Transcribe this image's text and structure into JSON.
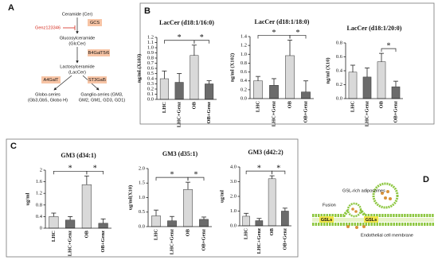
{
  "panel_labels": [
    "A",
    "B",
    "C",
    "D"
  ],
  "diagram_a": {
    "ceramide": "Ceramide (Cer)",
    "gcs": "GCS",
    "inhibitor": "Genz123346",
    "glccer_1": "Glucosylceramide",
    "glccer_2": "(GlcCer)",
    "b4galt": "B4GalT5/6",
    "laccer_1": "Lactosylceramide",
    "laccer_2": "(LacCer)",
    "a4galt": "A4GalT",
    "st3gal5": "ST3Gal5",
    "globo_1": "Globo-series",
    "globo_2": "(Gb3,Gb5, Globo H)",
    "ganglio_1": "Ganglio-series (GM3,",
    "ganglio_2": "GM2, GM1, GD3, GD1)"
  },
  "diagram_d": {
    "adiposomes": "GSL-rich adiposomes",
    "fusion": "Fusion",
    "gsls_1": "GSLs",
    "gsls_2": "GSLs",
    "membrane": "Endothelial cell membrane"
  },
  "chart_data": [
    {
      "type": "bar",
      "title": "LacCer (d18:1/16:0)",
      "y_label": "ng/ml (X103)",
      "categories": [
        "LHC",
        "LHC+Genz",
        "OB",
        "OB+Genz"
      ],
      "values": [
        0.4,
        0.33,
        0.85,
        0.3
      ],
      "errors": [
        0.15,
        0.17,
        0.2,
        0.06
      ],
      "colors": [
        "#d9d9d9",
        "#6b6b6b",
        "#d9d9d9",
        "#6b6b6b"
      ],
      "ylim": [
        0,
        1.2
      ],
      "yticks": [
        {
          "value": 0,
          "label": "0.0"
        },
        0.1,
        0.2,
        0.3,
        0.4,
        0.5,
        0.6,
        0.7,
        0.8,
        0.9,
        {
          "value": 1,
          "label": "1.0"
        },
        1.1,
        1.2
      ],
      "significance": [
        {
          "label": "*",
          "between": [
            "LHC",
            "OB"
          ]
        },
        {
          "label": "*",
          "between": [
            "OB",
            "OB+Genz"
          ]
        }
      ]
    },
    {
      "type": "bar",
      "title": "LacCer (d18:1/18:0)",
      "y_label": "ng/ml (X102)",
      "categories": [
        "LHC",
        "LHC+Genz",
        "OB",
        "OB+Genz"
      ],
      "values": [
        0.4,
        0.3,
        0.97,
        0.15
      ],
      "errors": [
        0.1,
        0.15,
        0.35,
        0.25
      ],
      "colors": [
        "#d9d9d9",
        "#6b6b6b",
        "#d9d9d9",
        "#6b6b6b"
      ],
      "ylim": [
        0,
        1.4
      ],
      "yticks": [
        {
          "value": 0,
          "label": "0.0"
        },
        0.2,
        0.4,
        0.6,
        0.8,
        {
          "value": 1,
          "label": "1.0"
        },
        1.2,
        1.4
      ],
      "significance": [
        {
          "label": "*",
          "between": [
            "LHC",
            "OB"
          ]
        },
        {
          "label": "*",
          "between": [
            "OB",
            "OB+Genz"
          ]
        }
      ]
    },
    {
      "type": "bar",
      "title": "LacCer (d18:1/20:0)",
      "y_label": "ng/ml (X10)",
      "categories": [
        "LHC",
        "LHC+Genz",
        "OB",
        "OB+Genz"
      ],
      "values": [
        0.38,
        0.31,
        0.53,
        0.17
      ],
      "errors": [
        0.1,
        0.13,
        0.12,
        0.08
      ],
      "colors": [
        "#d9d9d9",
        "#6b6b6b",
        "#d9d9d9",
        "#6b6b6b"
      ],
      "ylim": [
        0,
        0.8
      ],
      "yticks": [
        {
          "value": 0,
          "label": "0.0"
        },
        0.2,
        0.4,
        0.6,
        0.8
      ],
      "significance": [
        {
          "label": "*",
          "between": [
            "OB",
            "OB+Genz"
          ]
        }
      ]
    },
    {
      "type": "bar",
      "title": "GM3 (d34:1)",
      "y_label": "ug/ml",
      "categories": [
        "LHC",
        "LHC+Genz",
        "OB",
        "OB+Genz"
      ],
      "values": [
        0.4,
        0.28,
        1.5,
        0.17
      ],
      "errors": [
        0.12,
        0.12,
        0.3,
        0.15
      ],
      "colors": [
        "#d9d9d9",
        "#6b6b6b",
        "#d9d9d9",
        "#6b6b6b"
      ],
      "ylim": [
        0,
        2
      ],
      "yticks": [
        0,
        0.4,
        0.8,
        1.2,
        1.6,
        2
      ],
      "significance": [
        {
          "label": "*",
          "between": [
            "LHC",
            "OB"
          ]
        },
        {
          "label": "*",
          "between": [
            "OB",
            "OB+Genz"
          ]
        }
      ]
    },
    {
      "type": "bar",
      "title": "GM3 (d35:1)",
      "y_label": "ug/ml(X10)",
      "categories": [
        "LHC",
        "LHC+Genz",
        "OB",
        "OB+Genz"
      ],
      "values": [
        0.37,
        0.2,
        1.28,
        0.25
      ],
      "errors": [
        0.2,
        0.15,
        0.25,
        0.08
      ],
      "colors": [
        "#d9d9d9",
        "#6b6b6b",
        "#d9d9d9",
        "#6b6b6b"
      ],
      "ylim": [
        0,
        2
      ],
      "yticks": [
        {
          "value": 0,
          "label": "0.0"
        },
        0.5,
        {
          "value": 1,
          "label": "1.0"
        },
        1.5,
        {
          "value": 2,
          "label": "2.0"
        }
      ],
      "significance": [
        {
          "label": "*",
          "between": [
            "LHC",
            "OB"
          ]
        },
        {
          "label": "*",
          "between": [
            "OB",
            "OB+Genz"
          ]
        }
      ]
    },
    {
      "type": "bar",
      "title": "GM3 (d42:2)",
      "y_label": "ug/ml",
      "categories": [
        "LHC",
        "LHC+Genz",
        "OB",
        "OB+Genz"
      ],
      "values": [
        0.65,
        0.35,
        3.2,
        1.0
      ],
      "errors": [
        0.2,
        0.15,
        0.2,
        0.2
      ],
      "colors": [
        "#d9d9d9",
        "#6b6b6b",
        "#d9d9d9",
        "#6b6b6b"
      ],
      "ylim": [
        0,
        4
      ],
      "yticks": [
        {
          "value": 0,
          "label": "0.0"
        },
        {
          "value": 1,
          "label": "1.0"
        },
        {
          "value": 2,
          "label": "2.0"
        },
        {
          "value": 3,
          "label": "3.0"
        },
        {
          "value": 4,
          "label": "4.0"
        }
      ],
      "significance": [
        {
          "label": "*",
          "between": [
            "LHC",
            "OB"
          ]
        },
        {
          "label": "*",
          "between": [
            "OB",
            "OB+Genz"
          ]
        }
      ]
    }
  ]
}
